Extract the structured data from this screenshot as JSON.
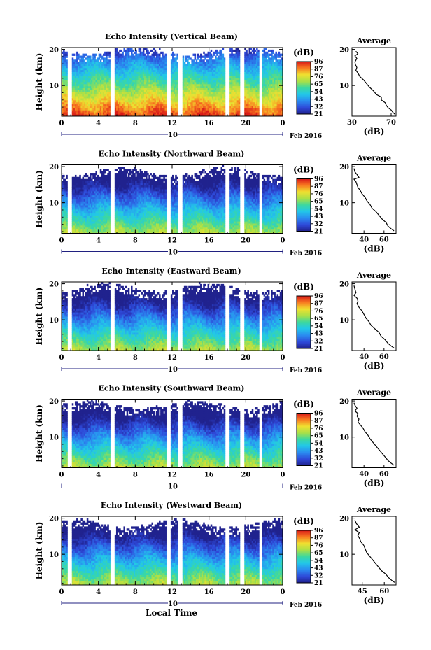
{
  "figure": {
    "x_axis_label": "Local Time",
    "time_range": [
      0,
      24
    ],
    "x_ticks": [
      "0",
      "4",
      "8",
      "12",
      "16",
      "20",
      "0"
    ],
    "date_bar_label": "10",
    "date_suffix": "Feb 2016",
    "average_title": "Average"
  },
  "chart_data": [
    {
      "type": "heatmap",
      "title": "Echo Intensity (Vertical Beam)",
      "ylabel": "Height (km)",
      "ylim": [
        1.5,
        20.5
      ],
      "y_ticks": [
        "20",
        "10"
      ],
      "colorbar_label": "(dB)",
      "colorbar_ticks": [
        "96",
        "87",
        "76",
        "65",
        "54",
        "43",
        "32",
        "21"
      ],
      "top_km": 19.8,
      "bands": [
        13.3,
        11.8
      ],
      "strength": 1.2,
      "profile": {
        "xlabel": "(dB)",
        "x_ticks": [
          "30",
          "70"
        ],
        "xlim": [
          30,
          75
        ],
        "points": [
          [
            19.5,
            34
          ],
          [
            18.8,
            36
          ],
          [
            18.2,
            33
          ],
          [
            17.5,
            35
          ],
          [
            16.5,
            33
          ],
          [
            15.8,
            33.5
          ],
          [
            15.0,
            35
          ],
          [
            14.2,
            34
          ],
          [
            13.5,
            36
          ],
          [
            12.5,
            38
          ],
          [
            11.5,
            42
          ],
          [
            10.5,
            45
          ],
          [
            9.5,
            48
          ],
          [
            8.5,
            52
          ],
          [
            7.5,
            55
          ],
          [
            6.8,
            60
          ],
          [
            6.0,
            60
          ],
          [
            5.2,
            64
          ],
          [
            4.5,
            65
          ],
          [
            3.8,
            67
          ],
          [
            3.2,
            70
          ],
          [
            2.5,
            72
          ],
          [
            2.0,
            74
          ]
        ]
      }
    },
    {
      "type": "heatmap",
      "title": "Echo Intensity (Northward Beam)",
      "ylabel": "Height (km)",
      "ylim": [
        1.5,
        20.5
      ],
      "y_ticks": [
        "20",
        "10"
      ],
      "colorbar_label": "(dB)",
      "colorbar_ticks": [
        "96",
        "87",
        "76",
        "65",
        "54",
        "43",
        "32",
        "21"
      ],
      "top_km": 18.7,
      "bands": [
        16.8,
        15.2
      ],
      "strength": 0.8,
      "profile": {
        "xlabel": "(dB)",
        "x_ticks": [
          "40",
          "60"
        ],
        "xlim": [
          28,
          72
        ],
        "points": [
          [
            19.5,
            30
          ],
          [
            18.5,
            31
          ],
          [
            17.8,
            33
          ],
          [
            17.0,
            35
          ],
          [
            16.5,
            30
          ],
          [
            15.8,
            32
          ],
          [
            15.0,
            33
          ],
          [
            14.2,
            34
          ],
          [
            13.5,
            36
          ],
          [
            12.5,
            38
          ],
          [
            11.5,
            41
          ],
          [
            10.5,
            43
          ],
          [
            9.5,
            46
          ],
          [
            8.5,
            48
          ],
          [
            7.5,
            52
          ],
          [
            6.5,
            55
          ],
          [
            5.5,
            58
          ],
          [
            4.5,
            62
          ],
          [
            3.5,
            64
          ],
          [
            2.8,
            67
          ],
          [
            2.2,
            70
          ]
        ]
      }
    },
    {
      "type": "heatmap",
      "title": "Echo Intensity (Eastward Beam)",
      "ylabel": "Height (km)",
      "ylim": [
        1.5,
        20.5
      ],
      "y_ticks": [
        "20",
        "10"
      ],
      "colorbar_label": "(dB)",
      "colorbar_ticks": [
        "96",
        "87",
        "76",
        "65",
        "54",
        "43",
        "32",
        "21"
      ],
      "top_km": 18.9,
      "bands": [
        16.8,
        15.8
      ],
      "strength": 0.8,
      "profile": {
        "xlabel": "(dB)",
        "x_ticks": [
          "40",
          "60"
        ],
        "xlim": [
          28,
          72
        ],
        "points": [
          [
            19.5,
            30
          ],
          [
            18.5,
            31
          ],
          [
            17.5,
            32
          ],
          [
            16.8,
            30
          ],
          [
            16.0,
            33
          ],
          [
            15.2,
            34
          ],
          [
            14.5,
            33
          ],
          [
            13.5,
            35
          ],
          [
            12.5,
            38
          ],
          [
            11.5,
            40
          ],
          [
            10.5,
            42
          ],
          [
            9.5,
            45
          ],
          [
            8.5,
            47
          ],
          [
            7.5,
            51
          ],
          [
            6.5,
            55
          ],
          [
            5.5,
            57
          ],
          [
            4.5,
            61
          ],
          [
            3.5,
            64
          ],
          [
            2.8,
            67
          ],
          [
            2.2,
            70
          ]
        ]
      }
    },
    {
      "type": "heatmap",
      "title": "Echo Intensity (Southward Beam)",
      "ylabel": "Height (km)",
      "ylim": [
        1.5,
        20.5
      ],
      "y_ticks": [
        "20",
        "10"
      ],
      "colorbar_label": "(dB)",
      "colorbar_ticks": [
        "96",
        "87",
        "76",
        "65",
        "54",
        "43",
        "32",
        "21"
      ],
      "top_km": 19.0,
      "bands": [
        17.2,
        15.5
      ],
      "strength": 0.8,
      "profile": {
        "xlabel": "(dB)",
        "x_ticks": [
          "40",
          "60"
        ],
        "xlim": [
          28,
          72
        ],
        "points": [
          [
            19.5,
            30
          ],
          [
            18.8,
            31
          ],
          [
            18.0,
            33
          ],
          [
            17.2,
            31
          ],
          [
            16.5,
            34
          ],
          [
            15.8,
            33
          ],
          [
            15.0,
            35
          ],
          [
            14.2,
            34
          ],
          [
            13.5,
            36
          ],
          [
            12.5,
            39
          ],
          [
            11.5,
            41
          ],
          [
            10.5,
            44
          ],
          [
            9.5,
            46
          ],
          [
            8.5,
            49
          ],
          [
            7.5,
            52
          ],
          [
            6.5,
            55
          ],
          [
            5.5,
            58
          ],
          [
            4.5,
            61
          ],
          [
            3.5,
            64
          ],
          [
            2.8,
            67
          ],
          [
            2.2,
            70
          ]
        ]
      }
    },
    {
      "type": "heatmap",
      "title": "Echo Intensity (Westward Beam)",
      "ylabel": "Height (km)",
      "ylim": [
        1.5,
        20.5
      ],
      "y_ticks": [
        "20",
        "10"
      ],
      "colorbar_label": "(dB)",
      "colorbar_ticks": [
        "96",
        "87",
        "76",
        "65",
        "54",
        "43",
        "32",
        "21"
      ],
      "top_km": 18.5,
      "bands": [
        16.6,
        15.0
      ],
      "strength": 0.8,
      "profile": {
        "xlabel": "(dB)",
        "x_ticks": [
          "45",
          "60"
        ],
        "xlim": [
          38,
          68
        ],
        "points": [
          [
            19.5,
            40
          ],
          [
            18.5,
            41
          ],
          [
            17.5,
            43
          ],
          [
            16.8,
            40
          ],
          [
            16.0,
            43
          ],
          [
            15.2,
            42
          ],
          [
            14.5,
            43
          ],
          [
            13.5,
            44
          ],
          [
            12.5,
            46
          ],
          [
            11.5,
            47
          ],
          [
            10.5,
            48
          ],
          [
            9.5,
            50
          ],
          [
            8.5,
            52
          ],
          [
            7.5,
            54
          ],
          [
            6.5,
            56
          ],
          [
            5.5,
            58
          ],
          [
            4.5,
            61
          ],
          [
            3.5,
            63
          ],
          [
            2.8,
            65
          ],
          [
            2.2,
            67
          ]
        ]
      }
    }
  ]
}
